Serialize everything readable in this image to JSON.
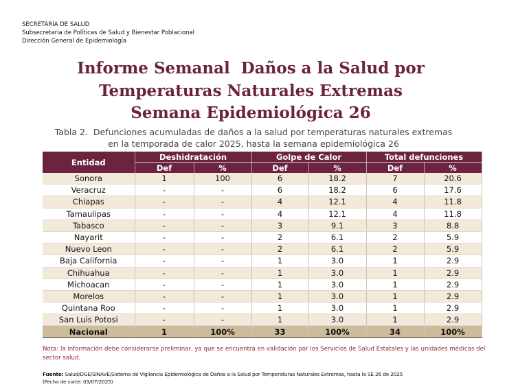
{
  "header": {
    "lines": [
      "SECRETARÍA DE SALUD",
      "Subsecretaría de Políticas de Salud y Bienestar Poblacional",
      "Dirección General de Epidemiología"
    ]
  },
  "title": {
    "lines": [
      "Informe Semanal  Daños a la Salud por",
      "Temperaturas Naturales Extremas",
      "Semana Epidemiológica 26"
    ]
  },
  "caption": {
    "lines": [
      "Tabla 2.  Defunciones acumuladas de daños a la salud por temperaturas naturales extremas",
      "en la temporada de calor 2025, hasta la semana epidemiológica 26"
    ]
  },
  "table": {
    "entity_header": "Entidad",
    "groups": [
      "Deshidratación",
      "Golpe de Calor",
      "Total defunciones"
    ],
    "subheaders": [
      "Def",
      "%",
      "Def",
      "%",
      "Def",
      "%"
    ],
    "rows": [
      [
        "Sonora",
        "1",
        "100",
        "6",
        "18.2",
        "7",
        "20.6"
      ],
      [
        "Veracruz",
        "-",
        "-",
        "6",
        "18.2",
        "6",
        "17.6"
      ],
      [
        "Chiapas",
        "-",
        "-",
        "4",
        "12.1",
        "4",
        "11.8"
      ],
      [
        "Tamaulipas",
        "-",
        "-",
        "4",
        "12.1",
        "4",
        "11.8"
      ],
      [
        "Tabasco",
        "-",
        "-",
        "3",
        "9.1",
        "3",
        "8.8"
      ],
      [
        "Nayarit",
        "-",
        "-",
        "2",
        "6.1",
        "2",
        "5.9"
      ],
      [
        "Nuevo Leon",
        "-",
        "-",
        "2",
        "6.1",
        "2",
        "5.9"
      ],
      [
        "Baja California",
        "-",
        "-",
        "1",
        "3.0",
        "1",
        "2.9"
      ],
      [
        "Chihuahua",
        "-",
        "-",
        "1",
        "3.0",
        "1",
        "2.9"
      ],
      [
        "Michoacan",
        "-",
        "-",
        "1",
        "3.0",
        "1",
        "2.9"
      ],
      [
        "Morelos",
        "-",
        "-",
        "1",
        "3.0",
        "1",
        "2.9"
      ],
      [
        "Quintana Roo",
        "-",
        "-",
        "1",
        "3.0",
        "1",
        "2.9"
      ],
      [
        "San Luis Potosi",
        "-",
        "-",
        "1",
        "3.0",
        "1",
        "2.9"
      ]
    ],
    "total": [
      "Nacional",
      "1",
      "100%",
      "33",
      "100%",
      "34",
      "100%"
    ]
  },
  "note": "Nota: la información debe considerarse preliminar, ya que se encuentra en validación por los Servicios de Salud Estatales y las unidades médicas del sector salud.",
  "source": {
    "label": "Fuente:",
    "text": "Salud/DGE/SINAVE/Sistema de Vigilancia Epidemiológica de Daños a la Salud por Temperaturas Naturales Extremas, hasta la SE 26 de 2025",
    "cutoff": "(Fecha de corte: 03/07/2025)"
  }
}
